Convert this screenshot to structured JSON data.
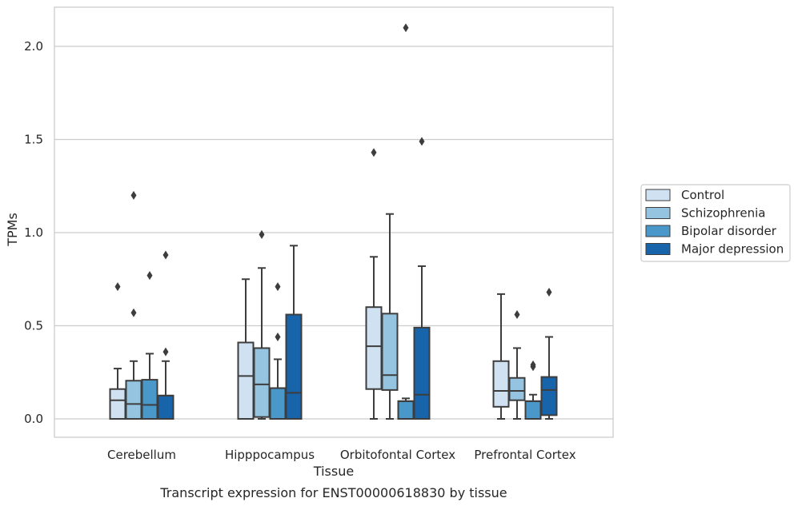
{
  "chart_data": {
    "type": "boxplot",
    "title": "Transcript expression for ENST00000618830 by tissue",
    "xlabel": "Tissue",
    "ylabel": "TPMs",
    "ylim": [
      -0.1,
      2.22
    ],
    "yticks": [
      "0.0",
      "0.5",
      "1.0",
      "1.5",
      "2.0"
    ],
    "ytick_values": [
      0,
      0.5,
      1,
      1.5,
      2
    ],
    "grid": true,
    "legend_position": "right",
    "categories": [
      "Cerebellum",
      "Hipppocampus",
      "Orbitofontal Cortex",
      "Prefrontal Cortex"
    ],
    "series": [
      {
        "name": "Control",
        "color": "#d0e1f2",
        "boxes": [
          {
            "whislo": 0,
            "q1": 0,
            "med": 0.1,
            "q3": 0.16,
            "whishi": 0.27,
            "fliers": [
              0.71
            ]
          },
          {
            "whislo": 0,
            "q1": 0,
            "med": 0.23,
            "q3": 0.41,
            "whishi": 0.75,
            "fliers": []
          },
          {
            "whislo": 0,
            "q1": 0.16,
            "med": 0.39,
            "q3": 0.6,
            "whishi": 0.87,
            "fliers": [
              1.43
            ]
          },
          {
            "whislo": 0,
            "q1": 0.065,
            "med": 0.15,
            "q3": 0.31,
            "whishi": 0.67,
            "fliers": []
          }
        ]
      },
      {
        "name": "Schizophrenia",
        "color": "#94c4df",
        "boxes": [
          {
            "whislo": 0,
            "q1": 0,
            "med": 0.08,
            "q3": 0.205,
            "whishi": 0.31,
            "fliers": [
              0.57,
              1.2
            ]
          },
          {
            "whislo": 0,
            "q1": 0.01,
            "med": 0.185,
            "q3": 0.38,
            "whishi": 0.81,
            "fliers": [
              0.99
            ]
          },
          {
            "whislo": 0,
            "q1": 0.155,
            "med": 0.235,
            "q3": 0.565,
            "whishi": 1.1,
            "fliers": []
          },
          {
            "whislo": 0,
            "q1": 0.1,
            "med": 0.15,
            "q3": 0.22,
            "whishi": 0.38,
            "fliers": [
              0.56
            ]
          }
        ]
      },
      {
        "name": "Bipolar disorder",
        "color": "#4a98c9",
        "boxes": [
          {
            "whislo": 0,
            "q1": 0,
            "med": 0.075,
            "q3": 0.21,
            "whishi": 0.35,
            "fliers": [
              0.77
            ]
          },
          {
            "whislo": 0,
            "q1": 0,
            "med": 0.165,
            "q3": 0.165,
            "whishi": 0.32,
            "fliers": [
              0.44,
              0.71
            ]
          },
          {
            "whislo": 0,
            "q1": 0,
            "med": 0.095,
            "q3": 0.095,
            "whishi": 0.11,
            "fliers": [
              2.1
            ]
          },
          {
            "whislo": 0,
            "q1": 0,
            "med": 0.095,
            "q3": 0.095,
            "whishi": 0.13,
            "fliers": [
              0.28,
              0.29
            ]
          }
        ]
      },
      {
        "name": "Major depression",
        "color": "#1764ab",
        "boxes": [
          {
            "whislo": 0,
            "q1": 0,
            "med": 0.125,
            "q3": 0.125,
            "whishi": 0.31,
            "fliers": [
              0.36,
              0.88
            ]
          },
          {
            "whislo": 0,
            "q1": 0,
            "med": 0.14,
            "q3": 0.56,
            "whishi": 0.93,
            "fliers": []
          },
          {
            "whislo": 0,
            "q1": 0,
            "med": 0.13,
            "q3": 0.49,
            "whishi": 0.82,
            "fliers": [
              1.49
            ]
          },
          {
            "whislo": 0,
            "q1": 0.02,
            "med": 0.155,
            "q3": 0.225,
            "whishi": 0.44,
            "fliers": [
              0.68
            ]
          }
        ]
      }
    ]
  },
  "colors": {
    "grid": "#cccccc",
    "axes_edge": "#cccccc",
    "box_edge": "#3d3d3d",
    "flier": "#3d3d3d"
  }
}
